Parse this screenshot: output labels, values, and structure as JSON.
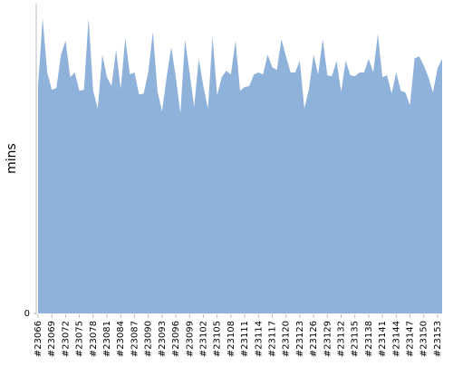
{
  "chart_data": {
    "type": "area",
    "y_label": "mins",
    "categories": [
      "#23066",
      null,
      null,
      "#23069",
      null,
      null,
      "#23072",
      null,
      null,
      "#23075",
      null,
      null,
      "#23078",
      null,
      null,
      "#23081",
      null,
      null,
      "#23084",
      null,
      null,
      "#23087",
      null,
      null,
      "#23090",
      null,
      null,
      "#23093",
      null,
      null,
      "#23096",
      null,
      null,
      "#23099",
      null,
      null,
      "#23102",
      null,
      null,
      "#23105",
      null,
      null,
      "#23108",
      null,
      null,
      "#23111",
      null,
      null,
      "#23114",
      null,
      null,
      "#23117",
      null,
      null,
      "#23120",
      null,
      null,
      "#23123",
      null,
      null,
      "#23126",
      null,
      null,
      "#23129",
      null,
      null,
      "#23132",
      null,
      null,
      "#23135",
      null,
      null,
      "#23138",
      null,
      null,
      "#23141",
      null,
      null,
      "#23144",
      null,
      null,
      "#23147",
      null,
      null,
      "#23150",
      null,
      null,
      "#23153",
      null
    ],
    "values": [
      73.6,
      95.6,
      78,
      72.4,
      73,
      83.8,
      88.3,
      76.5,
      78,
      72.1,
      72.4,
      95.6,
      72.1,
      66.3,
      83.8,
      76.5,
      73.6,
      85.3,
      72.7,
      89.1,
      77.4,
      78,
      70.9,
      71.2,
      78,
      91.2,
      72.1,
      65.4,
      76.5,
      86.2,
      76.5,
      64.8,
      88.6,
      78,
      66.9,
      82.4,
      73.6,
      66.3,
      89.7,
      70.6,
      76.5,
      78.6,
      77.4,
      88.3,
      72.1,
      73.3,
      73.6,
      77.4,
      78,
      77.4,
      83.8,
      79.7,
      78.8,
      88.8,
      83.2,
      78,
      78,
      81.8,
      66.3,
      72.7,
      83.8,
      77.4,
      88.8,
      77.1,
      76.8,
      81.8,
      71.8,
      81.8,
      77.1,
      76.8,
      78,
      78,
      82.4,
      78,
      90.5,
      76.5,
      77.1,
      71.2,
      78,
      72.1,
      71.5,
      67.4,
      82.6,
      83.2,
      80.3,
      76.5,
      71.5,
      79.4,
      82.4
    ],
    "color": "#8fb2db",
    "ylim": [
      0,
      100
    ],
    "yticks": [
      0
    ]
  }
}
